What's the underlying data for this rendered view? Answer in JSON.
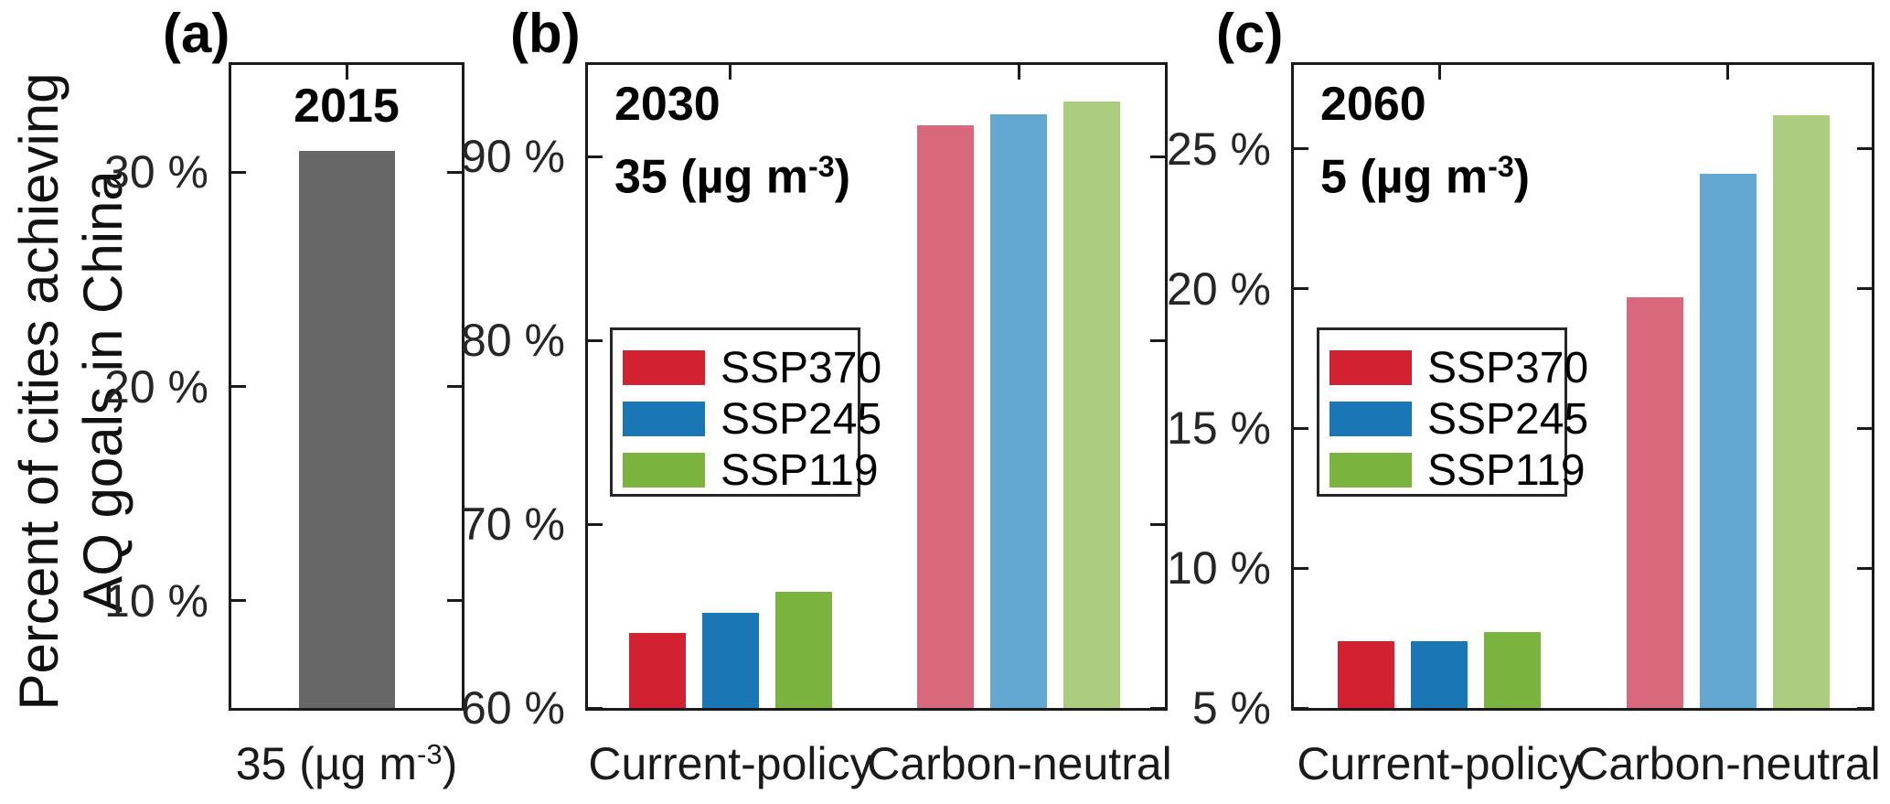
{
  "figure": {
    "ylabel_line1": "Percent of cities achieving",
    "ylabel_line2": "AQ goals in China",
    "background": "#ffffff",
    "axis_color": "#1a1a1a"
  },
  "legend": {
    "position": "upper-left inside panels b and c",
    "entries": [
      {
        "label": "SSP370",
        "color": "#d22130"
      },
      {
        "label": "SSP245",
        "color": "#1b76b6"
      },
      {
        "label": "SSP119",
        "color": "#7ab33e"
      }
    ]
  },
  "chart_data": [
    {
      "type": "bar",
      "panel_label": "(a)",
      "title": "2015",
      "categories": [
        "35 (µg m⁻³)"
      ],
      "xlabel_parts": {
        "pre": "35 (µg m",
        "sup": "-3",
        "post": ")"
      },
      "series": [
        {
          "name": "2015",
          "values": [
            31.0
          ],
          "colors": [
            "#676767"
          ]
        }
      ],
      "ylim": [
        5,
        35
      ],
      "yticks": [
        10,
        20,
        30
      ],
      "yticklabels": [
        "10 %",
        "20 %",
        "30 %"
      ],
      "grid": false,
      "legend_visible": false
    },
    {
      "type": "bar",
      "panel_label": "(b)",
      "annotation_line1": "2030",
      "annotation_line2_parts": {
        "pre": "35 (µg m",
        "sup": "-3",
        "post": ")"
      },
      "categories": [
        "Current-policy",
        "Carbon-neutral"
      ],
      "series": [
        {
          "name": "SSP370",
          "values": [
            64.1,
            91.7
          ],
          "colors": [
            "#d22130",
            "#da687c"
          ]
        },
        {
          "name": "SSP245",
          "values": [
            65.2,
            92.3
          ],
          "colors": [
            "#1b76b6",
            "#62a8d2"
          ]
        },
        {
          "name": "SSP119",
          "values": [
            66.3,
            93.0
          ],
          "colors": [
            "#7ab33e",
            "#accc7f"
          ]
        }
      ],
      "ylim": [
        60,
        95
      ],
      "yticks": [
        60,
        70,
        80,
        90
      ],
      "yticklabels": [
        "60 %",
        "70 %",
        "80 %",
        "90 %"
      ],
      "grid": false,
      "legend_visible": true
    },
    {
      "type": "bar",
      "panel_label": "(c)",
      "annotation_line1": "2060",
      "annotation_line2_parts": {
        "pre": "5 (µg m",
        "sup": "-3",
        "post": ")"
      },
      "categories": [
        "Current-policy",
        "Carbon-neutral"
      ],
      "series": [
        {
          "name": "SSP370",
          "values": [
            7.4,
            19.7
          ],
          "colors": [
            "#d22130",
            "#da687c"
          ]
        },
        {
          "name": "SSP245",
          "values": [
            7.4,
            24.1
          ],
          "colors": [
            "#1b76b6",
            "#62a8d2"
          ]
        },
        {
          "name": "SSP119",
          "values": [
            7.7,
            26.2
          ],
          "colors": [
            "#7ab33e",
            "#accc7f"
          ]
        }
      ],
      "ylim": [
        5,
        28
      ],
      "yticks": [
        5,
        10,
        15,
        20,
        25
      ],
      "yticklabels": [
        "5 %",
        "10 %",
        "15 %",
        "20 %",
        "25 %"
      ],
      "grid": false,
      "legend_visible": true
    }
  ]
}
